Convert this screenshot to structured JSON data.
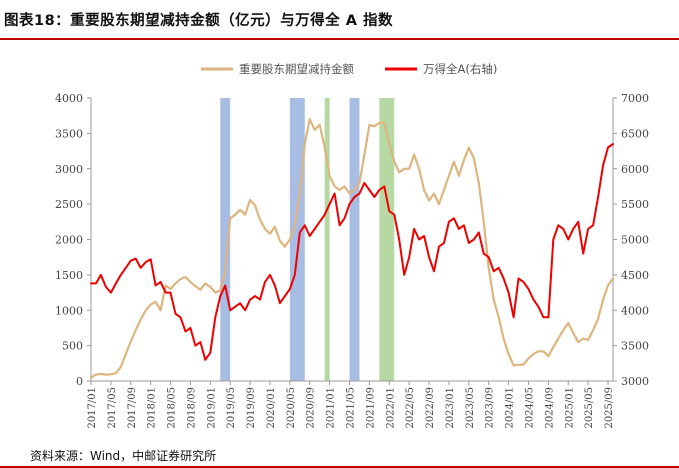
{
  "header": {
    "title": "图表18：重要股东期望减持金额（亿元）与万得全 A 指数"
  },
  "footer": {
    "source": "资料来源：Wind，中邮证券研究所"
  },
  "colors": {
    "series_reduction": "#ddb57e",
    "series_wind": "#ee0000",
    "band_blue": "#a7bde4",
    "band_green": "#b6d8a3",
    "axis": "#999999",
    "accent_rule": "#c00000"
  },
  "chart_data": {
    "type": "line",
    "title": "重要股东期望减持金额（亿元）与万得全 A 指数",
    "legend_position": "top-center",
    "grid": false,
    "x_range": [
      "2017-01",
      "2025-10"
    ],
    "x_ticks": [
      "2017/01",
      "2017/05",
      "2017/09",
      "2018/01",
      "2018/05",
      "2018/09",
      "2019/01",
      "2019/05",
      "2019/09",
      "2020/01",
      "2020/05",
      "2020/09",
      "2021/01",
      "2021/05",
      "2021/09",
      "2022/01",
      "2022/05",
      "2022/09",
      "2023/01",
      "2023/05",
      "2023/09",
      "2024/01",
      "2024/05",
      "2024/09",
      "2025/01",
      "2025/05",
      "2025/09"
    ],
    "y_left": {
      "min": 0,
      "max": 4000,
      "ticks": [
        "0",
        "500",
        "1000",
        "1500",
        "2000",
        "2500",
        "3000",
        "3500",
        "4000"
      ]
    },
    "y_right": {
      "min": 3000,
      "max": 7000,
      "ticks": [
        "3000",
        "3500",
        "4000",
        "4500",
        "5000",
        "5500",
        "6000",
        "6500",
        "7000"
      ]
    },
    "bands": [
      {
        "start": "2019-03",
        "end": "2019-05",
        "color": "blue"
      },
      {
        "start": "2020-05",
        "end": "2020-08",
        "color": "blue"
      },
      {
        "start": "2020-12",
        "end": "2021-01",
        "color": "green"
      },
      {
        "start": "2021-05",
        "end": "2021-07",
        "color": "blue"
      },
      {
        "start": "2021-11",
        "end": "2022-02",
        "color": "green"
      }
    ],
    "series": [
      {
        "name": "重要股东期望减持金额",
        "axis": "left",
        "color": "#ddb57e",
        "points": [
          [
            "2017-01",
            50
          ],
          [
            "2017-02",
            90
          ],
          [
            "2017-03",
            100
          ],
          [
            "2017-04",
            90
          ],
          [
            "2017-05",
            95
          ],
          [
            "2017-06",
            110
          ],
          [
            "2017-07",
            200
          ],
          [
            "2017-08",
            380
          ],
          [
            "2017-09",
            560
          ],
          [
            "2017-10",
            720
          ],
          [
            "2017-11",
            870
          ],
          [
            "2017-12",
            1000
          ],
          [
            "2018-01",
            1080
          ],
          [
            "2018-02",
            1120
          ],
          [
            "2018-03",
            1000
          ],
          [
            "2018-04",
            1350
          ],
          [
            "2018-05",
            1300
          ],
          [
            "2018-06",
            1380
          ],
          [
            "2018-07",
            1440
          ],
          [
            "2018-08",
            1470
          ],
          [
            "2018-09",
            1400
          ],
          [
            "2018-10",
            1340
          ],
          [
            "2018-11",
            1290
          ],
          [
            "2018-12",
            1380
          ],
          [
            "2019-01",
            1330
          ],
          [
            "2019-02",
            1250
          ],
          [
            "2019-03",
            1280
          ],
          [
            "2019-04",
            1550
          ],
          [
            "2019-05",
            2300
          ],
          [
            "2019-06",
            2350
          ],
          [
            "2019-07",
            2420
          ],
          [
            "2019-08",
            2350
          ],
          [
            "2019-09",
            2560
          ],
          [
            "2019-10",
            2480
          ],
          [
            "2019-11",
            2280
          ],
          [
            "2019-12",
            2150
          ],
          [
            "2020-01",
            2080
          ],
          [
            "2020-02",
            2180
          ],
          [
            "2020-03",
            1980
          ],
          [
            "2020-04",
            1900
          ],
          [
            "2020-05",
            2000
          ],
          [
            "2020-06",
            2200
          ],
          [
            "2020-07",
            2650
          ],
          [
            "2020-08",
            3350
          ],
          [
            "2020-09",
            3700
          ],
          [
            "2020-10",
            3550
          ],
          [
            "2020-11",
            3620
          ],
          [
            "2020-12",
            3300
          ],
          [
            "2021-01",
            2900
          ],
          [
            "2021-02",
            2750
          ],
          [
            "2021-03",
            2700
          ],
          [
            "2021-04",
            2750
          ],
          [
            "2021-05",
            2650
          ],
          [
            "2021-06",
            2700
          ],
          [
            "2021-07",
            2800
          ],
          [
            "2021-08",
            3200
          ],
          [
            "2021-09",
            3620
          ],
          [
            "2021-10",
            3600
          ],
          [
            "2021-11",
            3650
          ],
          [
            "2021-12",
            3650
          ],
          [
            "2022-01",
            3350
          ],
          [
            "2022-02",
            3100
          ],
          [
            "2022-03",
            2950
          ],
          [
            "2022-04",
            3000
          ],
          [
            "2022-05",
            3000
          ],
          [
            "2022-06",
            3200
          ],
          [
            "2022-07",
            3000
          ],
          [
            "2022-08",
            2700
          ],
          [
            "2022-09",
            2550
          ],
          [
            "2022-10",
            2650
          ],
          [
            "2022-11",
            2500
          ],
          [
            "2022-12",
            2700
          ],
          [
            "2023-01",
            2900
          ],
          [
            "2023-02",
            3100
          ],
          [
            "2023-03",
            2900
          ],
          [
            "2023-04",
            3120
          ],
          [
            "2023-05",
            3300
          ],
          [
            "2023-06",
            3150
          ],
          [
            "2023-07",
            2800
          ],
          [
            "2023-08",
            2250
          ],
          [
            "2023-09",
            1600
          ],
          [
            "2023-10",
            1150
          ],
          [
            "2023-11",
            900
          ],
          [
            "2023-12",
            600
          ],
          [
            "2024-01",
            380
          ],
          [
            "2024-02",
            220
          ],
          [
            "2024-03",
            230
          ],
          [
            "2024-04",
            230
          ],
          [
            "2024-05",
            320
          ],
          [
            "2024-06",
            380
          ],
          [
            "2024-07",
            420
          ],
          [
            "2024-08",
            420
          ],
          [
            "2024-09",
            350
          ],
          [
            "2024-10",
            480
          ],
          [
            "2024-11",
            600
          ],
          [
            "2024-12",
            720
          ],
          [
            "2025-01",
            820
          ],
          [
            "2025-02",
            680
          ],
          [
            "2025-03",
            550
          ],
          [
            "2025-04",
            600
          ],
          [
            "2025-05",
            580
          ],
          [
            "2025-06",
            720
          ],
          [
            "2025-07",
            880
          ],
          [
            "2025-08",
            1150
          ],
          [
            "2025-09",
            1350
          ],
          [
            "2025-10",
            1450
          ]
        ]
      },
      {
        "name": "万得全A(右轴)",
        "axis": "right",
        "color": "#ee0000",
        "points": [
          [
            "2017-01",
            4380
          ],
          [
            "2017-02",
            4380
          ],
          [
            "2017-03",
            4500
          ],
          [
            "2017-04",
            4330
          ],
          [
            "2017-05",
            4250
          ],
          [
            "2017-06",
            4380
          ],
          [
            "2017-07",
            4500
          ],
          [
            "2017-08",
            4600
          ],
          [
            "2017-09",
            4700
          ],
          [
            "2017-10",
            4730
          ],
          [
            "2017-11",
            4600
          ],
          [
            "2017-12",
            4680
          ],
          [
            "2018-01",
            4720
          ],
          [
            "2018-02",
            4350
          ],
          [
            "2018-03",
            4400
          ],
          [
            "2018-04",
            4250
          ],
          [
            "2018-05",
            4250
          ],
          [
            "2018-06",
            3950
          ],
          [
            "2018-07",
            3900
          ],
          [
            "2018-08",
            3700
          ],
          [
            "2018-09",
            3750
          ],
          [
            "2018-10",
            3500
          ],
          [
            "2018-11",
            3550
          ],
          [
            "2018-12",
            3300
          ],
          [
            "2019-01",
            3400
          ],
          [
            "2019-02",
            3900
          ],
          [
            "2019-03",
            4200
          ],
          [
            "2019-04",
            4350
          ],
          [
            "2019-05",
            4000
          ],
          [
            "2019-06",
            4050
          ],
          [
            "2019-07",
            4100
          ],
          [
            "2019-08",
            4000
          ],
          [
            "2019-09",
            4150
          ],
          [
            "2019-10",
            4200
          ],
          [
            "2019-11",
            4150
          ],
          [
            "2019-12",
            4400
          ],
          [
            "2020-01",
            4500
          ],
          [
            "2020-02",
            4350
          ],
          [
            "2020-03",
            4100
          ],
          [
            "2020-04",
            4200
          ],
          [
            "2020-05",
            4300
          ],
          [
            "2020-06",
            4500
          ],
          [
            "2020-07",
            5100
          ],
          [
            "2020-08",
            5200
          ],
          [
            "2020-09",
            5050
          ],
          [
            "2020-10",
            5150
          ],
          [
            "2020-11",
            5250
          ],
          [
            "2020-12",
            5350
          ],
          [
            "2021-01",
            5500
          ],
          [
            "2021-02",
            5650
          ],
          [
            "2021-03",
            5200
          ],
          [
            "2021-04",
            5300
          ],
          [
            "2021-05",
            5500
          ],
          [
            "2021-06",
            5600
          ],
          [
            "2021-07",
            5650
          ],
          [
            "2021-08",
            5800
          ],
          [
            "2021-09",
            5700
          ],
          [
            "2021-10",
            5600
          ],
          [
            "2021-11",
            5700
          ],
          [
            "2021-12",
            5750
          ],
          [
            "2022-01",
            5400
          ],
          [
            "2022-02",
            5350
          ],
          [
            "2022-03",
            5000
          ],
          [
            "2022-04",
            4500
          ],
          [
            "2022-05",
            4750
          ],
          [
            "2022-06",
            5150
          ],
          [
            "2022-07",
            5000
          ],
          [
            "2022-08",
            5050
          ],
          [
            "2022-09",
            4750
          ],
          [
            "2022-10",
            4550
          ],
          [
            "2022-11",
            4900
          ],
          [
            "2022-12",
            4950
          ],
          [
            "2023-01",
            5250
          ],
          [
            "2023-02",
            5300
          ],
          [
            "2023-03",
            5150
          ],
          [
            "2023-04",
            5200
          ],
          [
            "2023-05",
            4950
          ],
          [
            "2023-06",
            5000
          ],
          [
            "2023-07",
            5100
          ],
          [
            "2023-08",
            4800
          ],
          [
            "2023-09",
            4750
          ],
          [
            "2023-10",
            4550
          ],
          [
            "2023-11",
            4600
          ],
          [
            "2023-12",
            4450
          ],
          [
            "2024-01",
            4250
          ],
          [
            "2024-02",
            3900
          ],
          [
            "2024-03",
            4450
          ],
          [
            "2024-04",
            4400
          ],
          [
            "2024-05",
            4300
          ],
          [
            "2024-06",
            4150
          ],
          [
            "2024-07",
            4050
          ],
          [
            "2024-08",
            3900
          ],
          [
            "2024-09",
            3900
          ],
          [
            "2024-10",
            5000
          ],
          [
            "2024-11",
            5200
          ],
          [
            "2024-12",
            5150
          ],
          [
            "2025-01",
            5000
          ],
          [
            "2025-02",
            5150
          ],
          [
            "2025-03",
            5250
          ],
          [
            "2025-04",
            4800
          ],
          [
            "2025-05",
            5150
          ],
          [
            "2025-06",
            5200
          ],
          [
            "2025-07",
            5600
          ],
          [
            "2025-08",
            6050
          ],
          [
            "2025-09",
            6300
          ],
          [
            "2025-10",
            6350
          ]
        ]
      }
    ]
  }
}
